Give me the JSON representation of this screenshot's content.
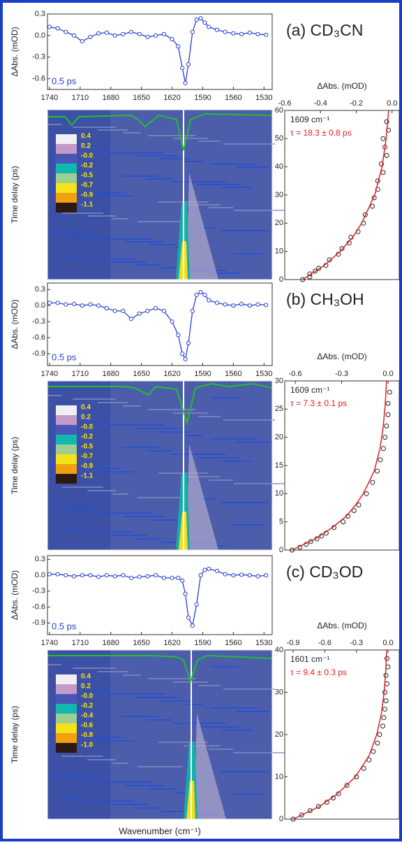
{
  "chart_data": [
    {
      "type": "line",
      "title": "(a) CD₃CN",
      "ylabel": "ΔAbs. (mOD)",
      "annotation": "0.5 ps",
      "color": "#2a3fd0",
      "x": [
        1740,
        1732,
        1724,
        1716,
        1708,
        1700,
        1692,
        1684,
        1676,
        1668,
        1660,
        1652,
        1644,
        1636,
        1628,
        1620,
        1614,
        1610,
        1607,
        1604,
        1600,
        1596,
        1592,
        1588,
        1584,
        1576,
        1568,
        1560,
        1552,
        1544,
        1536,
        1528
      ],
      "values": [
        0.12,
        0.1,
        0.05,
        0.0,
        -0.08,
        -0.02,
        0.03,
        0.04,
        0.0,
        0.02,
        0.05,
        0.02,
        -0.02,
        0.0,
        0.02,
        -0.05,
        -0.15,
        -0.45,
        -0.66,
        -0.4,
        0.05,
        0.22,
        0.24,
        0.18,
        0.12,
        0.08,
        0.05,
        0.03,
        0.02,
        0.04,
        0.02,
        0.01
      ],
      "xlim": [
        1742,
        1522
      ],
      "xticks": [
        1740,
        1710,
        1680,
        1650,
        1620,
        1590,
        1560,
        1530
      ],
      "ylim": [
        -0.75,
        0.3
      ],
      "yticks": [
        0.3,
        {
          "value": 0,
          "label": "0.0"
        },
        -0.3,
        -0.6
      ]
    },
    {
      "type": "heatmap",
      "ylabel": "Time delay (ps)",
      "colorbar_labels": [
        "0.4",
        "0.2",
        "-0.0",
        "-0.2",
        "-0.5",
        "-0.7",
        "-0.9",
        "-1.1"
      ]
    },
    {
      "type": "scatter",
      "xlabel": "ΔAbs. (mOD)",
      "annotations": [
        "1609 cm⁻¹",
        "τ = 18.3 ± 0.8 ps"
      ],
      "color": "#222222",
      "x": [
        -0.5,
        -0.46,
        -0.46,
        -0.43,
        -0.41,
        -0.37,
        -0.35,
        -0.3,
        -0.28,
        -0.24,
        -0.23,
        -0.19,
        -0.16,
        -0.15,
        -0.11,
        -0.1,
        -0.08,
        -0.08,
        -0.05,
        -0.06,
        -0.03,
        -0.04,
        -0.05,
        -0.02,
        -0.03
      ],
      "y": [
        0,
        1,
        2,
        3,
        4,
        5,
        7,
        9,
        11,
        13,
        15,
        17,
        20,
        23,
        26,
        29,
        32,
        35,
        38,
        41,
        44,
        47,
        50,
        53,
        56
      ],
      "fit": {
        "color": "#dd2222",
        "x": [
          -0.5,
          -0.38,
          -0.29,
          -0.22,
          -0.17,
          -0.097,
          -0.056,
          -0.033,
          -0.019
        ],
        "y": [
          0,
          5,
          10,
          15,
          20,
          30,
          40,
          50,
          60
        ]
      },
      "xlim": [
        -0.6,
        0.04
      ],
      "xticks": [
        -0.6,
        -0.4,
        -0.2,
        {
          "value": 0,
          "label": "0.0"
        }
      ],
      "ylim": [
        0,
        60
      ],
      "yticks": [
        0,
        10,
        20,
        30,
        40,
        50,
        60
      ]
    },
    {
      "type": "line",
      "title": "(b) CH₃OH",
      "ylabel": "ΔAbs. (mOD)",
      "annotation": "0.5 ps",
      "color": "#2a3fd0",
      "x": [
        1740,
        1732,
        1724,
        1716,
        1708,
        1700,
        1692,
        1684,
        1676,
        1668,
        1660,
        1652,
        1644,
        1636,
        1628,
        1620,
        1614,
        1610,
        1607,
        1604,
        1600,
        1596,
        1592,
        1588,
        1584,
        1576,
        1568,
        1560,
        1552,
        1544,
        1536,
        1528
      ],
      "values": [
        0.05,
        0.05,
        0.02,
        0.03,
        0.0,
        0.02,
        0.0,
        -0.05,
        -0.1,
        -0.1,
        -0.25,
        -0.15,
        -0.1,
        -0.05,
        -0.1,
        -0.3,
        -0.55,
        -0.9,
        -1.0,
        -0.7,
        -0.1,
        0.2,
        0.25,
        0.2,
        0.1,
        0.05,
        0.02,
        0.0,
        0.03,
        0.0,
        0.02,
        0.01
      ],
      "xlim": [
        1742,
        1522
      ],
      "xticks": [
        1740,
        1710,
        1680,
        1650,
        1620,
        1590,
        1560,
        1530
      ],
      "ylim": [
        -1.12,
        0.42
      ],
      "yticks": [
        0.3,
        {
          "value": 0,
          "label": "0.0"
        },
        -0.3,
        -0.6,
        -0.9
      ]
    },
    {
      "type": "heatmap",
      "ylabel": "Time delay (ps)",
      "colorbar_labels": [
        "0.4",
        "0.2",
        "-0.0",
        "-0.2",
        "-0.5",
        "-0.7",
        "-0.9",
        "-1.1"
      ]
    },
    {
      "type": "scatter",
      "xlabel": "ΔAbs. (mOD)",
      "annotations": [
        "1609 cm⁻¹",
        "τ = 7.3 ± 0.1 ps"
      ],
      "color": "#222222",
      "x": [
        -0.62,
        -0.57,
        -0.53,
        -0.5,
        -0.46,
        -0.43,
        -0.4,
        -0.35,
        -0.29,
        -0.26,
        -0.22,
        -0.19,
        -0.14,
        -0.1,
        -0.07,
        -0.05,
        -0.03,
        -0.02,
        -0.01,
        0.0,
        0.0,
        0.01
      ],
      "y": [
        0,
        0.5,
        1,
        1.5,
        2,
        2.5,
        3,
        4,
        5,
        6,
        7,
        8,
        10,
        12,
        14,
        16,
        18,
        20,
        22,
        24,
        26,
        28
      ],
      "fit": {
        "color": "#dd2222",
        "x": [
          -0.62,
          -0.47,
          -0.36,
          -0.27,
          -0.21,
          -0.16,
          -0.09,
          -0.052,
          -0.031,
          -0.018,
          -0.01
        ],
        "y": [
          0,
          2,
          4,
          6,
          8,
          10,
          14,
          18,
          22,
          26,
          30
        ]
      },
      "xlim": [
        -0.668,
        0.072
      ],
      "xticks": [
        -0.6,
        -0.3,
        {
          "value": 0,
          "label": "0.0"
        }
      ],
      "ylim": [
        0,
        30
      ],
      "yticks": [
        0,
        5,
        10,
        15,
        20,
        25,
        30
      ]
    },
    {
      "type": "line",
      "title": "(c) CD₃OD",
      "ylabel": "ΔAbs. (mOD)",
      "annotation": "0.5 ps",
      "color": "#2a3fd0",
      "x": [
        1740,
        1732,
        1724,
        1716,
        1708,
        1700,
        1692,
        1684,
        1676,
        1668,
        1660,
        1652,
        1644,
        1636,
        1628,
        1620,
        1614,
        1610,
        1607,
        1604,
        1600,
        1596,
        1592,
        1588,
        1584,
        1576,
        1568,
        1560,
        1552,
        1544,
        1536,
        1528
      ],
      "values": [
        0.02,
        0.02,
        0.0,
        -0.02,
        0.0,
        0.0,
        -0.03,
        0.0,
        -0.02,
        0.0,
        -0.05,
        -0.03,
        -0.02,
        0.0,
        -0.05,
        -0.05,
        -0.05,
        -0.1,
        -0.35,
        -0.8,
        -0.95,
        -0.55,
        0.0,
        0.1,
        0.12,
        0.08,
        0.02,
        0.0,
        0.01,
        0.0,
        -0.02,
        0.0
      ],
      "xlim": [
        1742,
        1522
      ],
      "xticks": [
        1740,
        1710,
        1680,
        1650,
        1620,
        1590,
        1560,
        1530
      ],
      "ylim": [
        -1.12,
        0.37
      ],
      "yticks": [
        0.3,
        {
          "value": 0,
          "label": "0.0"
        },
        -0.3,
        -0.6,
        -0.9
      ]
    },
    {
      "type": "heatmap",
      "ylabel": "Time delay (ps)",
      "xlabel": "Wavenumber (cm⁻¹)",
      "colorbar_labels": [
        "0.4",
        "0.2",
        "-0.0",
        "-0.2",
        "-0.4",
        "-0.6",
        "-0.8",
        "-1.0"
      ]
    },
    {
      "type": "scatter",
      "xlabel": "ΔAbs. (mOD)",
      "annotations": [
        "1601 cm⁻¹",
        "τ = 9.4 ± 0.3 ps"
      ],
      "color": "#222222",
      "x": [
        -0.9,
        -0.82,
        -0.74,
        -0.66,
        -0.58,
        -0.52,
        -0.47,
        -0.39,
        -0.3,
        -0.23,
        -0.18,
        -0.14,
        -0.1,
        -0.08,
        -0.05,
        -0.04,
        -0.03,
        -0.02,
        -0.03,
        -0.01,
        -0.02,
        0.0,
        -0.01
      ],
      "y": [
        0,
        1,
        2,
        3,
        4,
        5,
        6,
        8,
        10,
        12,
        14,
        16,
        18,
        20,
        22,
        24,
        26,
        28,
        30,
        32,
        34,
        36,
        38
      ],
      "fit": {
        "color": "#dd2222",
        "x": [
          -0.9,
          -0.65,
          -0.48,
          -0.31,
          -0.18,
          -0.107,
          -0.063,
          -0.037,
          -0.022,
          -0.013
        ],
        "y": [
          0,
          3,
          6,
          10,
          15,
          20,
          25,
          30,
          35,
          40
        ]
      },
      "xlim": [
        -0.98,
        0.106
      ],
      "xticks": [
        -0.9,
        -0.6,
        -0.3,
        {
          "value": 0,
          "label": "0.0"
        }
      ],
      "ylim": [
        0,
        40
      ],
      "yticks": [
        0,
        10,
        20,
        30,
        40
      ]
    }
  ]
}
